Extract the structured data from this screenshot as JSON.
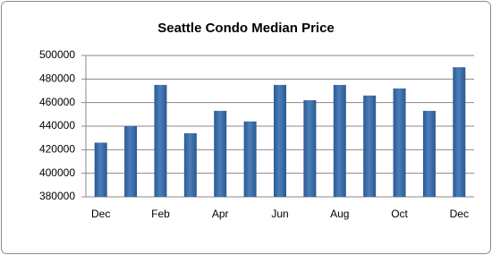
{
  "chart_data": {
    "type": "bar",
    "title": "Seattle Condo Median Price",
    "categories": [
      "Dec",
      null,
      "Feb",
      null,
      "Apr",
      null,
      "Jun",
      null,
      "Aug",
      null,
      "Oct",
      null,
      "Dec"
    ],
    "values": [
      426000,
      440000,
      475000,
      434000,
      453000,
      444000,
      475000,
      462000,
      475000,
      466000,
      472000,
      453000,
      490000
    ],
    "color": "#4a7ebb",
    "ylim": [
      380000,
      500000
    ],
    "yticks": [
      380000,
      400000,
      420000,
      440000,
      460000,
      480000,
      500000
    ],
    "grid": true
  }
}
